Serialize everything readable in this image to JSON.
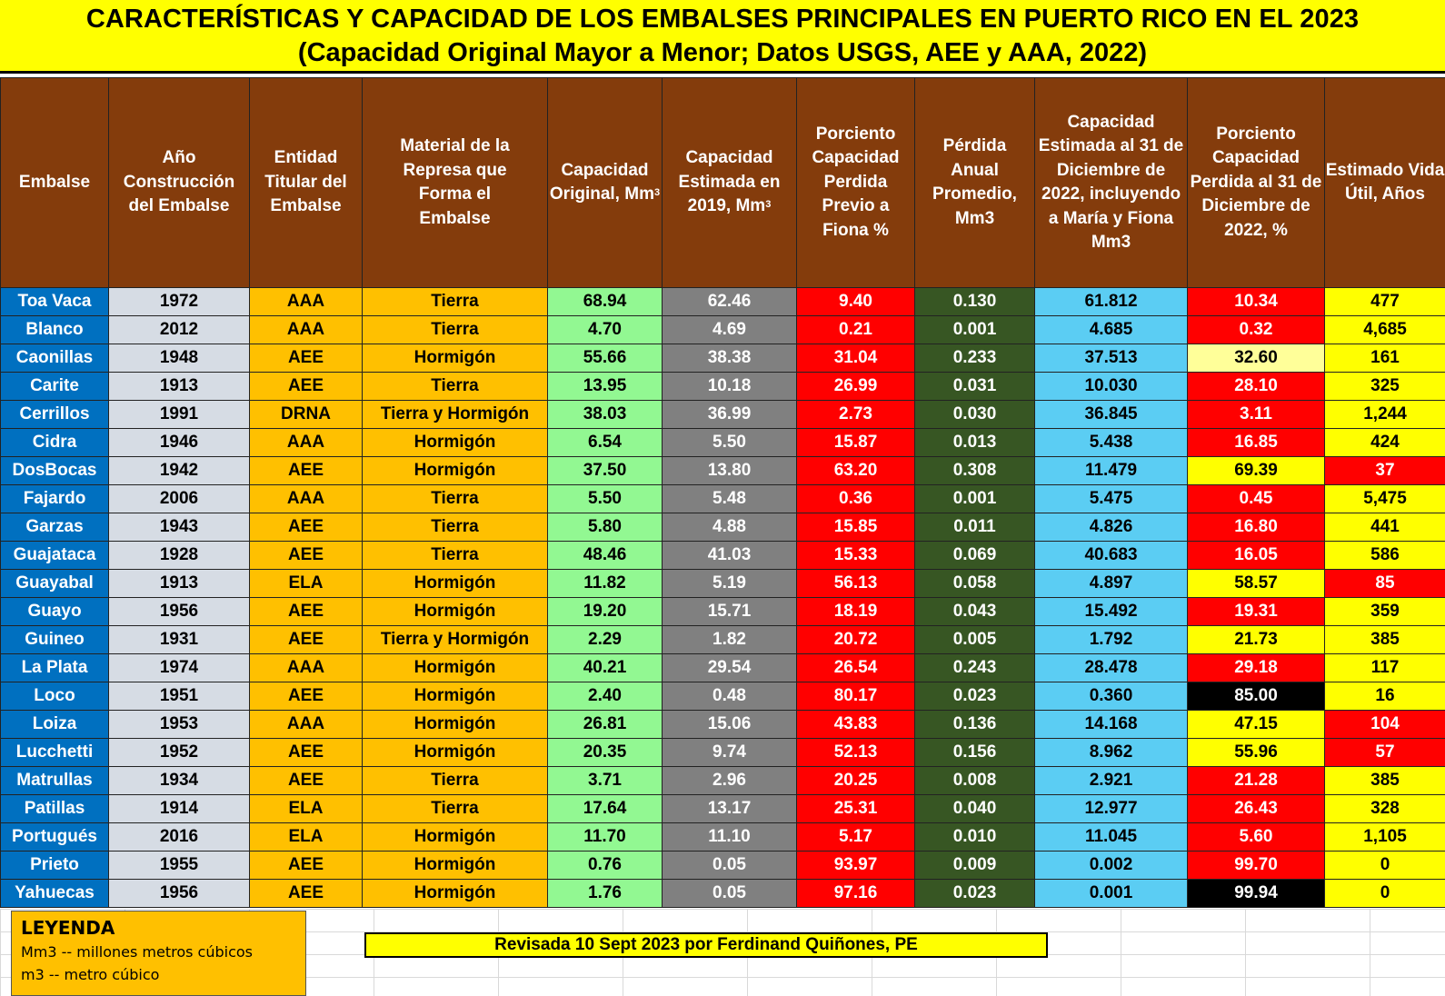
{
  "title": {
    "line1": "CARACTERÍSTICAS Y CAPACIDAD DE LOS EMBALSES PRINCIPALES EN PUERTO RICO EN EL 2023",
    "line2": "(Capacidad Original Mayor a Menor; Datos USGS, AEE y AAA, 2022)"
  },
  "headers": {
    "embalse": "Embalse",
    "anio": "Año Construcción del Embalse",
    "entidad": "Entidad Titular del Embalse",
    "material": "Material de la Represa que Forma el Embalse",
    "cap_orig": "Capacidad Original, Mm",
    "cap_orig_sup": "3",
    "cap_2019": "Capacidad Estimada en 2019, Mm",
    "cap_2019_sup": "3",
    "pct_fiona": "Porciento Capacidad Perdida Previo a Fiona %",
    "perdida": "Pérdida Anual Promedio, Mm3",
    "cap_2022": "Capacidad Estimada al 31 de Diciembre de 2022, incluyendo a María y Fiona Mm3",
    "pct_2022": "Porciento Capacidad Perdida al 31 de Diciembre de 2022, %",
    "vida": "Estimado Vida Útil, Años"
  },
  "rows": [
    {
      "embalse": "Toa Vaca",
      "anio": "1972",
      "entidad": "AAA",
      "material": "Tierra",
      "cap_orig": "68.94",
      "cap_2019": "62.46",
      "pct_fiona": "9.40",
      "perdida": "0.130",
      "cap_2022": "61.812",
      "pct_2022": "10.34",
      "pct_color": "#ff0000",
      "vida": "477",
      "vida_color": "#ffff00"
    },
    {
      "embalse": "Blanco",
      "anio": "2012",
      "entidad": "AAA",
      "material": "Tierra",
      "cap_orig": "4.70",
      "cap_2019": "4.69",
      "pct_fiona": "0.21",
      "perdida": "0.001",
      "cap_2022": "4.685",
      "pct_2022": "0.32",
      "pct_color": "#ff0000",
      "vida": "4,685",
      "vida_color": "#ffff00"
    },
    {
      "embalse": "Caonillas",
      "anio": "1948",
      "entidad": "AEE",
      "material": "Hormigón",
      "cap_orig": "55.66",
      "cap_2019": "38.38",
      "pct_fiona": "31.04",
      "perdida": "0.233",
      "cap_2022": "37.513",
      "pct_2022": "32.60",
      "pct_color": "#ffff99",
      "vida": "161",
      "vida_color": "#ffff00"
    },
    {
      "embalse": "Carite",
      "anio": "1913",
      "entidad": "AEE",
      "material": "Tierra",
      "cap_orig": "13.95",
      "cap_2019": "10.18",
      "pct_fiona": "26.99",
      "perdida": "0.031",
      "cap_2022": "10.030",
      "pct_2022": "28.10",
      "pct_color": "#ff0000",
      "vida": "325",
      "vida_color": "#ffff00"
    },
    {
      "embalse": "Cerrillos",
      "anio": "1991",
      "entidad": "DRNA",
      "material": "Tierra y Hormigón",
      "cap_orig": "38.03",
      "cap_2019": "36.99",
      "pct_fiona": "2.73",
      "perdida": "0.030",
      "cap_2022": "36.845",
      "pct_2022": "3.11",
      "pct_color": "#ff0000",
      "vida": "1,244",
      "vida_color": "#ffff00"
    },
    {
      "embalse": "Cidra",
      "anio": "1946",
      "entidad": "AAA",
      "material": "Hormigón",
      "cap_orig": "6.54",
      "cap_2019": "5.50",
      "pct_fiona": "15.87",
      "perdida": "0.013",
      "cap_2022": "5.438",
      "pct_2022": "16.85",
      "pct_color": "#ff0000",
      "vida": "424",
      "vida_color": "#ffff00"
    },
    {
      "embalse": "DosBocas",
      "anio": "1942",
      "entidad": "AEE",
      "material": "Hormigón",
      "cap_orig": "37.50",
      "cap_2019": "13.80",
      "pct_fiona": "63.20",
      "perdida": "0.308",
      "cap_2022": "11.479",
      "pct_2022": "69.39",
      "pct_color": "#ffff00",
      "vida": "37",
      "vida_color": "#ff0000"
    },
    {
      "embalse": "Fajardo",
      "anio": "2006",
      "entidad": "AAA",
      "material": "Tierra",
      "cap_orig": "5.50",
      "cap_2019": "5.48",
      "pct_fiona": "0.36",
      "perdida": "0.001",
      "cap_2022": "5.475",
      "pct_2022": "0.45",
      "pct_color": "#ff0000",
      "vida": "5,475",
      "vida_color": "#ffff00"
    },
    {
      "embalse": "Garzas",
      "anio": "1943",
      "entidad": "AEE",
      "material": "Tierra",
      "cap_orig": "5.80",
      "cap_2019": "4.88",
      "pct_fiona": "15.85",
      "perdida": "0.011",
      "cap_2022": "4.826",
      "pct_2022": "16.80",
      "pct_color": "#ff0000",
      "vida": "441",
      "vida_color": "#ffff00"
    },
    {
      "embalse": "Guajataca",
      "anio": "1928",
      "entidad": "AEE",
      "material": "Tierra",
      "cap_orig": "48.46",
      "cap_2019": "41.03",
      "pct_fiona": "15.33",
      "perdida": "0.069",
      "cap_2022": "40.683",
      "pct_2022": "16.05",
      "pct_color": "#ff0000",
      "vida": "586",
      "vida_color": "#ffff00"
    },
    {
      "embalse": "Guayabal",
      "anio": "1913",
      "entidad": "ELA",
      "material": "Hormigón",
      "cap_orig": "11.82",
      "cap_2019": "5.19",
      "pct_fiona": "56.13",
      "perdida": "0.058",
      "cap_2022": "4.897",
      "pct_2022": "58.57",
      "pct_color": "#ffff00",
      "vida": "85",
      "vida_color": "#ff0000"
    },
    {
      "embalse": "Guayo",
      "anio": "1956",
      "entidad": "AEE",
      "material": "Hormigón",
      "cap_orig": "19.20",
      "cap_2019": "15.71",
      "pct_fiona": "18.19",
      "perdida": "0.043",
      "cap_2022": "15.492",
      "pct_2022": "19.31",
      "pct_color": "#ff0000",
      "vida": "359",
      "vida_color": "#ffff00"
    },
    {
      "embalse": "Guineo",
      "anio": "1931",
      "entidad": "AEE",
      "material": "Tierra y Hormigón",
      "cap_orig": "2.29",
      "cap_2019": "1.82",
      "pct_fiona": "20.72",
      "perdida": "0.005",
      "cap_2022": "1.792",
      "pct_2022": "21.73",
      "pct_color": "#ffff00",
      "vida": "385",
      "vida_color": "#ffff00"
    },
    {
      "embalse": "La Plata",
      "anio": "1974",
      "entidad": "AAA",
      "material": "Hormigón",
      "cap_orig": "40.21",
      "cap_2019": "29.54",
      "pct_fiona": "26.54",
      "perdida": "0.243",
      "cap_2022": "28.478",
      "pct_2022": "29.18",
      "pct_color": "#ff0000",
      "vida": "117",
      "vida_color": "#ffff00"
    },
    {
      "embalse": "Loco",
      "anio": "1951",
      "entidad": "AEE",
      "material": "Hormigón",
      "cap_orig": "2.40",
      "cap_2019": "0.48",
      "pct_fiona": "80.17",
      "perdida": "0.023",
      "cap_2022": "0.360",
      "pct_2022": "85.00",
      "pct_color": "#000000",
      "vida": "16",
      "vida_color": "#ffff00"
    },
    {
      "embalse": "Loiza",
      "anio": "1953",
      "entidad": "AAA",
      "material": "Hormigón",
      "cap_orig": "26.81",
      "cap_2019": "15.06",
      "pct_fiona": "43.83",
      "perdida": "0.136",
      "cap_2022": "14.168",
      "pct_2022": "47.15",
      "pct_color": "#ffff00",
      "vida": "104",
      "vida_color": "#ff0000"
    },
    {
      "embalse": "Lucchetti",
      "anio": "1952",
      "entidad": "AEE",
      "material": "Hormigón",
      "cap_orig": "20.35",
      "cap_2019": "9.74",
      "pct_fiona": "52.13",
      "perdida": "0.156",
      "cap_2022": "8.962",
      "pct_2022": "55.96",
      "pct_color": "#ffff00",
      "vida": "57",
      "vida_color": "#ff0000"
    },
    {
      "embalse": "Matrullas",
      "anio": "1934",
      "entidad": "AEE",
      "material": "Tierra",
      "cap_orig": "3.71",
      "cap_2019": "2.96",
      "pct_fiona": "20.25",
      "perdida": "0.008",
      "cap_2022": "2.921",
      "pct_2022": "21.28",
      "pct_color": "#ff0000",
      "vida": "385",
      "vida_color": "#ffff00"
    },
    {
      "embalse": "Patillas",
      "anio": "1914",
      "entidad": "ELA",
      "material": "Tierra",
      "cap_orig": "17.64",
      "cap_2019": "13.17",
      "pct_fiona": "25.31",
      "perdida": "0.040",
      "cap_2022": "12.977",
      "pct_2022": "26.43",
      "pct_color": "#ff0000",
      "vida": "328",
      "vida_color": "#ffff00"
    },
    {
      "embalse": "Portugués",
      "anio": "2016",
      "entidad": "ELA",
      "material": "Hormigón",
      "cap_orig": "11.70",
      "cap_2019": "11.10",
      "pct_fiona": "5.17",
      "perdida": "0.010",
      "cap_2022": "11.045",
      "pct_2022": "5.60",
      "pct_color": "#ff0000",
      "vida": "1,105",
      "vida_color": "#ffff00"
    },
    {
      "embalse": "Prieto",
      "anio": "1955",
      "entidad": "AEE",
      "material": "Hormigón",
      "cap_orig": "0.76",
      "cap_2019": "0.05",
      "pct_fiona": "93.97",
      "perdida": "0.009",
      "cap_2022": "0.002",
      "pct_2022": "99.70",
      "pct_color": "#ff0000",
      "vida": "0",
      "vida_color": "#ffff00"
    },
    {
      "embalse": "Yahuecas",
      "anio": "1956",
      "entidad": "AEE",
      "material": "Hormigón",
      "cap_orig": "1.76",
      "cap_2019": "0.05",
      "pct_fiona": "97.16",
      "perdida": "0.023",
      "cap_2022": "0.001",
      "pct_2022": "99.94",
      "pct_color": "#000000",
      "vida": "0",
      "vida_color": "#ffff00"
    }
  ],
  "legend": {
    "title": "LEYENDA",
    "items": [
      "Mm3 -- millones metros cúbicos",
      "m3 -- metro cúbico"
    ]
  },
  "revised": "Revisada 10 Sept 2023 por Ferdinand Quiñones, PE"
}
